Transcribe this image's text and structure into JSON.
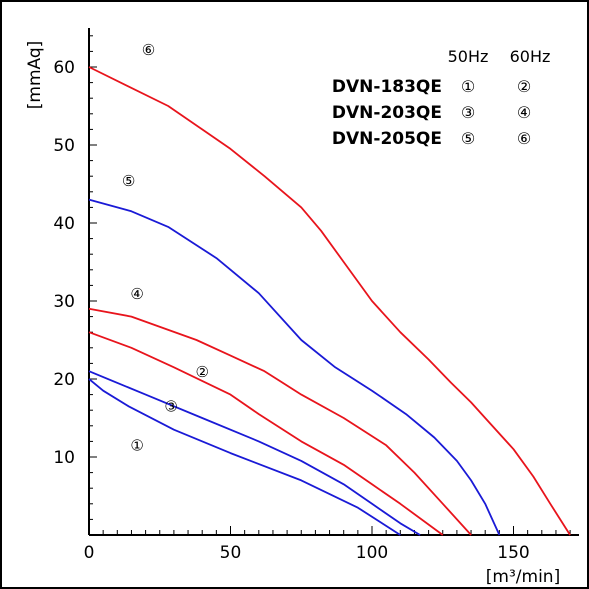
{
  "chart_data": {
    "type": "line",
    "title": "",
    "xlabel": "[m³/min]",
    "ylabel": "[mmAq]",
    "xlim": [
      0,
      170
    ],
    "ylim": [
      0,
      65
    ],
    "x_ticks": [
      0,
      50,
      100,
      150
    ],
    "y_ticks": [
      10,
      20,
      30,
      40,
      50,
      60
    ],
    "grid": false,
    "colors": {
      "50Hz": "#1a1ad6",
      "60Hz": "#e8141c",
      "axis": "#000000"
    },
    "legend": {
      "placement": "top-right",
      "headers": [
        "50Hz",
        "60Hz"
      ],
      "rows": [
        {
          "model": "DVN-183QE",
          "marks": [
            "①",
            "②"
          ]
        },
        {
          "model": "DVN-203QE",
          "marks": [
            "③",
            "④"
          ]
        },
        {
          "model": "DVN-205QE",
          "marks": [
            "⑤",
            "⑥"
          ]
        }
      ]
    },
    "series": [
      {
        "mark": "①",
        "hz": "50Hz",
        "label_at": [
          17,
          11.6
        ],
        "x": [
          0,
          5,
          14,
          30,
          50,
          75,
          95,
          110
        ],
        "y": [
          20,
          18.5,
          16.5,
          13.5,
          10.5,
          7,
          3.5,
          0
        ]
      },
      {
        "mark": "②",
        "hz": "60Hz",
        "label_at": [
          40,
          21
        ],
        "x": [
          0,
          15,
          30,
          50,
          60,
          75,
          90,
          100,
          110,
          125
        ],
        "y": [
          26,
          24,
          21.5,
          18,
          15.5,
          12,
          9,
          6.5,
          4,
          0
        ]
      },
      {
        "mark": "③",
        "hz": "50Hz",
        "label_at": [
          29,
          16.6
        ],
        "x": [
          0,
          20,
          40,
          60,
          75,
          90,
          100,
          110,
          117
        ],
        "y": [
          21,
          18,
          15,
          12,
          9.5,
          6.5,
          4,
          1.5,
          0
        ]
      },
      {
        "mark": "④",
        "hz": "60Hz",
        "label_at": [
          17,
          31
        ],
        "x": [
          0,
          15,
          38,
          50,
          62,
          75,
          90,
          105,
          115,
          125,
          135
        ],
        "y": [
          29,
          28,
          25,
          23,
          21,
          18,
          15,
          11.5,
          8,
          4,
          0
        ]
      },
      {
        "mark": "⑤",
        "hz": "50Hz",
        "label_at": [
          14,
          45.5
        ],
        "x": [
          0,
          15,
          28,
          45,
          60,
          75,
          87,
          100,
          112,
          122,
          130,
          135,
          140,
          145
        ],
        "y": [
          43,
          41.5,
          39.5,
          35.5,
          31,
          25,
          21.5,
          18.5,
          15.5,
          12.5,
          9.5,
          7,
          4,
          0
        ]
      },
      {
        "mark": "⑥",
        "hz": "60Hz",
        "label_at": [
          21,
          62.3
        ],
        "x": [
          0,
          28,
          40,
          50,
          62,
          75,
          82,
          90,
          100,
          110,
          120,
          128,
          135,
          140,
          150,
          157,
          163,
          170
        ],
        "y": [
          60,
          55,
          52,
          49.5,
          46,
          42,
          39,
          35,
          30,
          26,
          22.5,
          19.5,
          17,
          15,
          11,
          7.5,
          4,
          0
        ]
      }
    ]
  }
}
